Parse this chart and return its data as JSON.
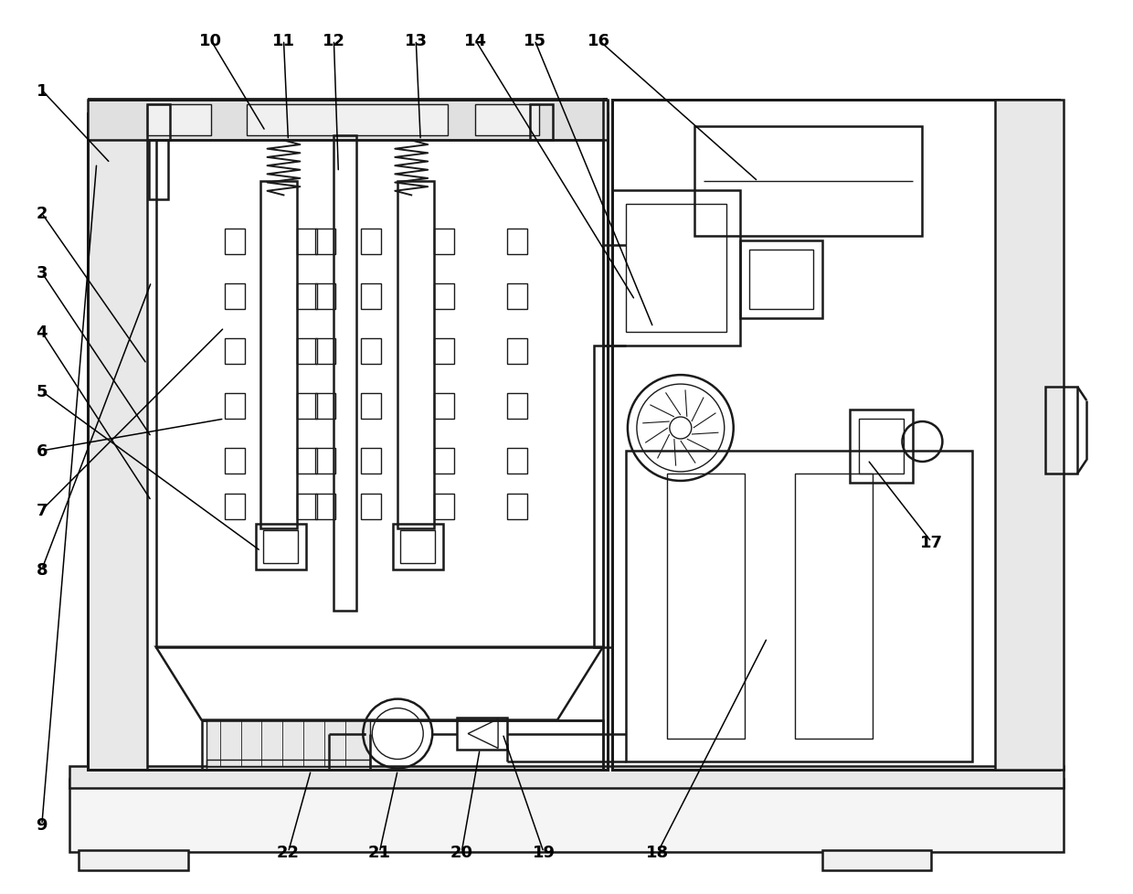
{
  "background_color": "#ffffff",
  "lc": "#1a1a1a",
  "lw": 1.8,
  "tlw": 1.0,
  "figsize": [
    12.4,
    9.79
  ],
  "dpi": 100,
  "xlim": [
    0,
    124
  ],
  "ylim": [
    0,
    97.9
  ]
}
